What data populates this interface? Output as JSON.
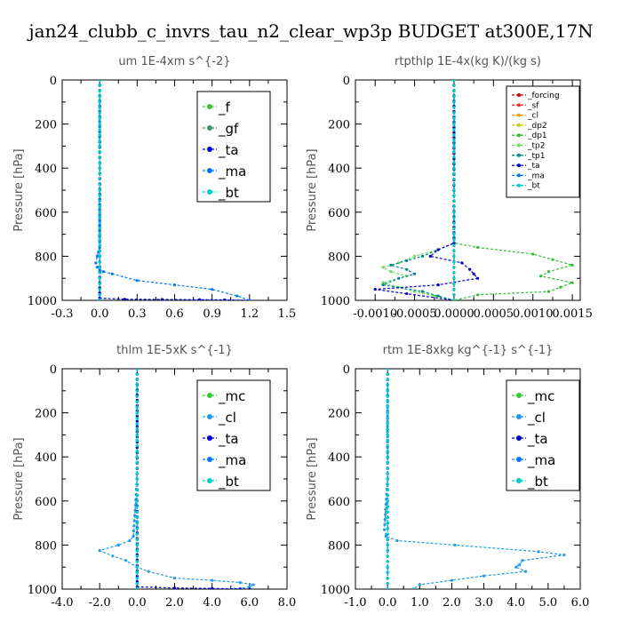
{
  "figure_title": "jan24_clubb_c_invrs_tau_n2_clear_wp3p  BUDGET at300E,17N",
  "chart_data": [
    {
      "type": "line",
      "title": "um  1E-4xm s^{-2}",
      "ylabel": "Pressure [hPa]",
      "xlim": [
        -0.3,
        1.5
      ],
      "ylim": [
        1000,
        0
      ],
      "x_ticks": [
        "-0.3",
        "0.0",
        "0.3",
        "0.6",
        "0.9",
        "1.2",
        "1.5"
      ],
      "y_ticks": [
        "0",
        "200",
        "400",
        "600",
        "800",
        "1000"
      ],
      "legend": "top-right",
      "series": [
        {
          "name": "_f",
          "color": "#33cc33",
          "x": [
            0,
            0,
            0,
            0,
            0,
            0,
            0,
            0,
            0,
            0,
            0,
            0
          ],
          "y": [
            0,
            100,
            200,
            300,
            400,
            500,
            600,
            700,
            800,
            850,
            900,
            1000
          ]
        },
        {
          "name": "_gf",
          "color": "#339966",
          "x": [
            0,
            0,
            0,
            0,
            0,
            0,
            0,
            0,
            0,
            0,
            0,
            0
          ],
          "y": [
            0,
            100,
            200,
            300,
            400,
            500,
            600,
            700,
            800,
            850,
            900,
            1000
          ]
        },
        {
          "name": "_ta",
          "color": "#0000cc",
          "x": [
            0,
            0,
            0,
            0,
            0.2,
            0.5,
            0.8,
            1.0,
            1.2
          ],
          "y": [
            0,
            400,
            800,
            990,
            995,
            996,
            997,
            998,
            1000
          ]
        },
        {
          "name": "_ma",
          "color": "#0077ff",
          "x": [
            0,
            0,
            0,
            -0.02,
            -0.03,
            -0.02,
            0.0,
            0.03,
            0.1,
            0.3,
            0.6,
            0.9,
            1.1,
            1.2
          ],
          "y": [
            0,
            400,
            760,
            800,
            830,
            850,
            860,
            870,
            880,
            910,
            930,
            950,
            980,
            1000
          ]
        },
        {
          "name": "_bt",
          "color": "#00cccc",
          "x": [
            0,
            0,
            0,
            0,
            0,
            0,
            0,
            0,
            0,
            0,
            0
          ],
          "y": [
            0,
            100,
            200,
            300,
            400,
            500,
            600,
            700,
            800,
            900,
            1000
          ]
        }
      ]
    },
    {
      "type": "line",
      "title": "rtpthlp  1E-4x(kg K)/(kg s)",
      "ylabel": "Pressure [hPa]",
      "xlim": [
        -0.00125,
        0.0016
      ],
      "ylim": [
        1000,
        0
      ],
      "x_ticks": [
        "-0.0010",
        "-0.0005",
        "0.0000",
        "0.0005",
        "0.0010",
        "0.0015"
      ],
      "x_tick_values": [
        -0.001,
        -0.0005,
        0.0,
        0.0005,
        0.001,
        0.0015
      ],
      "y_ticks": [
        "0",
        "200",
        "400",
        "600",
        "800",
        "1000"
      ],
      "legend": "top-right",
      "series": [
        {
          "name": "_forcing",
          "color": "#cc0000",
          "x": [
            0,
            0,
            0,
            0,
            0,
            0,
            0,
            0,
            0,
            0,
            0
          ],
          "y": [
            0,
            100,
            200,
            300,
            400,
            500,
            600,
            700,
            800,
            900,
            1000
          ]
        },
        {
          "name": "_sf",
          "color": "#ff3333",
          "x": [
            0,
            0,
            0,
            0,
            0,
            0,
            0,
            0,
            0,
            0,
            0
          ],
          "y": [
            0,
            100,
            200,
            300,
            400,
            500,
            600,
            700,
            800,
            900,
            1000
          ]
        },
        {
          "name": "_cl",
          "color": "#ff9900",
          "x": [
            0,
            0,
            0,
            0,
            0,
            0,
            0,
            0,
            0,
            0,
            0
          ],
          "y": [
            0,
            100,
            200,
            300,
            400,
            500,
            600,
            700,
            800,
            900,
            1000
          ]
        },
        {
          "name": "_dp2",
          "color": "#cccc00",
          "x": [
            0,
            0,
            0,
            0,
            0,
            0,
            0,
            0,
            0,
            0,
            0
          ],
          "y": [
            0,
            100,
            200,
            300,
            400,
            500,
            600,
            700,
            800,
            900,
            1000
          ]
        },
        {
          "name": "_dp1",
          "color": "#33bb33",
          "x": [
            0,
            0,
            0.0003,
            0.001,
            0.0015,
            0.0012,
            0.0011,
            0.0015,
            0.0012,
            0.0003,
            0
          ],
          "y": [
            0,
            740,
            760,
            790,
            840,
            870,
            890,
            920,
            960,
            975,
            1000
          ]
        },
        {
          "name": "_tp2",
          "color": "#66dd66",
          "x": [
            0,
            0,
            -0.0002,
            -0.0005,
            -0.0007,
            -0.0009,
            -0.0008,
            -0.0006,
            -0.0009,
            -0.0005,
            0
          ],
          "y": [
            0,
            740,
            770,
            800,
            830,
            850,
            870,
            890,
            920,
            960,
            1000
          ]
        },
        {
          "name": "_tp1",
          "color": "#008888",
          "x": [
            0,
            0,
            -0.0002,
            -0.0004,
            -0.0008,
            -0.0006,
            -0.0005,
            -0.0007,
            -0.0009,
            -0.0004,
            0
          ],
          "y": [
            0,
            740,
            770,
            800,
            840,
            860,
            880,
            900,
            930,
            960,
            1000
          ]
        },
        {
          "name": "_ta",
          "color": "#0000cc",
          "x": [
            0,
            0,
            -0.0002,
            -0.0003,
            0.0001,
            0.0002,
            0.0003,
            -0.0002,
            -0.001,
            -0.0006,
            0
          ],
          "y": [
            0,
            740,
            770,
            800,
            830,
            860,
            900,
            930,
            950,
            970,
            1000
          ]
        },
        {
          "name": "_ma",
          "color": "#0077ff",
          "x": [
            0,
            0,
            0,
            0,
            0,
            0,
            0,
            0,
            0,
            0,
            0
          ],
          "y": [
            0,
            100,
            200,
            300,
            400,
            500,
            600,
            700,
            800,
            900,
            1000
          ]
        },
        {
          "name": "_bt",
          "color": "#00cccc",
          "x": [
            0,
            0,
            0,
            0,
            0,
            0,
            0,
            0,
            0,
            0,
            0
          ],
          "y": [
            0,
            100,
            200,
            300,
            400,
            500,
            600,
            700,
            800,
            900,
            1000
          ]
        }
      ]
    },
    {
      "type": "line",
      "title": "thlm  1E-5xK s^{-1}",
      "ylabel": "Pressure [hPa]",
      "xlim": [
        -4.0,
        8.0
      ],
      "ylim": [
        1000,
        0
      ],
      "x_ticks": [
        "-4.0",
        "-2.0",
        "0.0",
        "2.0",
        "4.0",
        "6.0",
        "8.0"
      ],
      "y_ticks": [
        "0",
        "200",
        "400",
        "600",
        "800",
        "1000"
      ],
      "legend": "top-right",
      "series": [
        {
          "name": "_mc",
          "color": "#33cc33",
          "x": [
            0,
            0,
            0,
            0,
            0,
            0,
            0,
            0,
            0,
            0,
            0
          ],
          "y": [
            0,
            100,
            200,
            300,
            400,
            500,
            600,
            700,
            800,
            900,
            1000
          ]
        },
        {
          "name": "_cl",
          "color": "#2299ee",
          "x": [
            0,
            0,
            -0.2,
            -0.4,
            -1.0,
            -2.0,
            -1.3,
            -0.6,
            0.0,
            0.6,
            2.0,
            4.0,
            5.5,
            6.2,
            6.0,
            5.2
          ],
          "y": [
            0,
            500,
            760,
            780,
            800,
            825,
            850,
            870,
            900,
            920,
            950,
            960,
            970,
            980,
            990,
            1000
          ]
        },
        {
          "name": "_ta",
          "color": "#0000cc",
          "x": [
            0,
            0,
            0,
            2.0,
            4.0,
            5.5,
            6.0
          ],
          "y": [
            0,
            500,
            990,
            995,
            997,
            999,
            1000
          ]
        },
        {
          "name": "_ma",
          "color": "#0077ff",
          "x": [
            0,
            0,
            0,
            0,
            0,
            0,
            0,
            0,
            0,
            0,
            0
          ],
          "y": [
            0,
            100,
            200,
            300,
            400,
            500,
            600,
            700,
            800,
            900,
            1000
          ]
        },
        {
          "name": "_bt",
          "color": "#00cccc",
          "x": [
            0,
            0,
            0,
            0,
            0,
            0,
            0,
            0,
            0,
            0,
            0
          ],
          "y": [
            0,
            100,
            200,
            300,
            400,
            500,
            600,
            700,
            800,
            900,
            1000
          ]
        }
      ]
    },
    {
      "type": "line",
      "title": "rtm  1E-8xkg kg^{-1} s^{-1}",
      "ylabel": "Pressure [hPa]",
      "xlim": [
        -1.0,
        6.0
      ],
      "ylim": [
        1000,
        0
      ],
      "x_ticks": [
        "-1.0",
        "0.0",
        "1.0",
        "2.0",
        "3.0",
        "4.0",
        "5.0",
        "6.0"
      ],
      "y_ticks": [
        "0",
        "200",
        "400",
        "600",
        "800",
        "1000"
      ],
      "legend": "top-right",
      "series": [
        {
          "name": "_mc",
          "color": "#33cc33",
          "x": [
            0,
            0,
            0,
            0,
            0,
            0,
            0,
            0,
            0,
            0,
            0
          ],
          "y": [
            0,
            100,
            200,
            300,
            400,
            500,
            600,
            700,
            800,
            900,
            1000
          ]
        },
        {
          "name": "_cl",
          "color": "#2299ee",
          "x": [
            0,
            0,
            -0.1,
            -0.05,
            0.3,
            2.1,
            4.7,
            5.5,
            4.2,
            4.1,
            4.0,
            4.3,
            3.0,
            2.0,
            1.0,
            0.8
          ],
          "y": [
            0,
            500,
            730,
            760,
            780,
            800,
            830,
            845,
            870,
            890,
            900,
            920,
            940,
            960,
            980,
            1000
          ]
        },
        {
          "name": "_ta",
          "color": "#0000cc",
          "x": [
            0,
            0,
            0,
            0,
            0,
            0,
            0,
            0,
            0,
            0,
            0
          ],
          "y": [
            0,
            100,
            200,
            300,
            400,
            500,
            600,
            700,
            800,
            900,
            1000
          ]
        },
        {
          "name": "_ma",
          "color": "#0077ff",
          "x": [
            0,
            0,
            0,
            0,
            0,
            0,
            0,
            0,
            0,
            0,
            0
          ],
          "y": [
            0,
            100,
            200,
            300,
            400,
            500,
            600,
            700,
            800,
            900,
            1000
          ]
        },
        {
          "name": "_bt",
          "color": "#00cccc",
          "x": [
            0,
            0,
            0,
            0,
            0,
            0,
            0,
            0,
            0,
            0,
            0
          ],
          "y": [
            0,
            100,
            200,
            300,
            400,
            500,
            600,
            700,
            800,
            900,
            1000
          ]
        }
      ]
    }
  ]
}
